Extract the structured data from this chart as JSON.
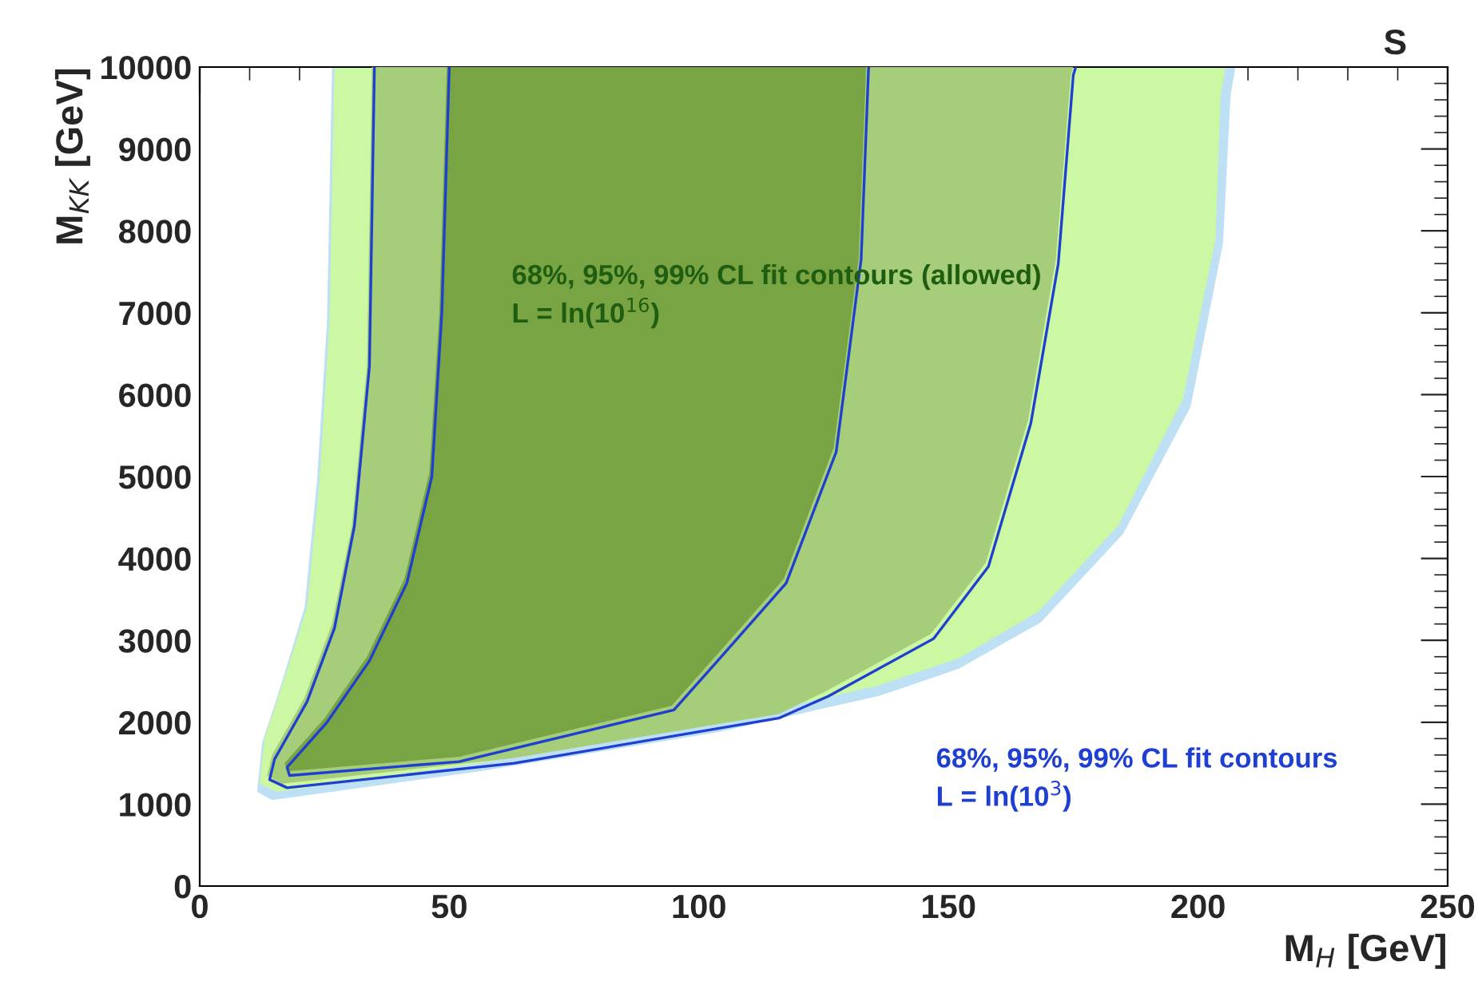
{
  "chart_data": {
    "type": "area",
    "title": "S",
    "xlabel": "M$_{H}$ [GeV]",
    "ylabel": "M$_{KK}$ [GeV]",
    "xlim": [
      0,
      250
    ],
    "ylim": [
      0,
      10000
    ],
    "xticks": [
      0,
      50,
      100,
      150,
      200,
      250
    ],
    "yticks": [
      0,
      1000,
      2000,
      3000,
      4000,
      5000,
      6000,
      7000,
      8000,
      9000,
      10000
    ],
    "grid": false,
    "legend": false,
    "annotations": [
      "68%, 95%, 99% CL fit contours (allowed)\nL = ln(10$^{16}$)",
      "68%, 95%, 99% CL fit contours\nL = ln(10$^{3}$)"
    ],
    "series": [
      {
        "color": "#bde0f5",
        "x": [
          26.5,
          25.5,
          23.5,
          21,
          16,
          12.5,
          11.5,
          14.5,
          56,
          104,
          136,
          152,
          168.5,
          185,
          198.5,
          205,
          206.5,
          207.5
        ],
        "values": [
          10000,
          6900,
          4950,
          3400,
          2400,
          1750,
          1150,
          1050,
          1400,
          1880,
          2320,
          2650,
          3220,
          4300,
          5850,
          7850,
          9650,
          10000
        ]
      },
      {
        "color": "#ccf7a3",
        "x": [
          27,
          26,
          24,
          21.5,
          16.5,
          13,
          12,
          15.5,
          56,
          104,
          136,
          152,
          168,
          184,
          197,
          203.5,
          204.5,
          205.5
        ],
        "values": [
          10000,
          6900,
          4950,
          3400,
          2450,
          1800,
          1250,
          1150,
          1500,
          2000,
          2450,
          2780,
          3350,
          4400,
          5950,
          7900,
          9650,
          10000
        ]
      },
      {
        "color": "#a6cd79",
        "x": [
          34.5,
          33.5,
          30.5,
          26.5,
          21,
          14.5,
          13.5,
          16.5,
          62.5,
          116,
          125.5,
          146.5,
          157.5,
          166,
          171.5,
          174.5,
          175
        ],
        "values": [
          10000,
          6350,
          4400,
          3200,
          2300,
          1600,
          1350,
          1250,
          1560,
          2100,
          2380,
          3080,
          3950,
          5700,
          7650,
          9900,
          10000
        ]
      },
      {
        "color": "#78a443",
        "x": [
          49.5,
          48,
          46,
          41,
          33.5,
          25,
          17,
          17.5,
          52,
          94.5,
          104,
          117,
          127,
          132,
          133.5
        ],
        "values": [
          10000,
          7000,
          5050,
          3750,
          2800,
          2050,
          1500,
          1400,
          1580,
          2200,
          2850,
          3750,
          5350,
          7650,
          10000
        ]
      },
      {
        "type": "line",
        "color": "#1f3fd0",
        "x": [
          35,
          34,
          31,
          27,
          21.5,
          15,
          14,
          17.5,
          63,
          116,
          126,
          147,
          158,
          166.5,
          172,
          175,
          175.5
        ],
        "values": [
          10000,
          6350,
          4400,
          3150,
          2250,
          1550,
          1300,
          1200,
          1500,
          2050,
          2320,
          3020,
          3900,
          5650,
          7600,
          9900,
          10000
        ]
      },
      {
        "type": "line",
        "color": "#1f3fd0",
        "x": [
          50,
          48.5,
          46.5,
          41.5,
          34,
          25.5,
          17.5,
          18,
          52,
          95,
          104.5,
          117.5,
          127.5,
          132.5,
          134
        ],
        "values": [
          10000,
          7000,
          5000,
          3700,
          2750,
          2000,
          1450,
          1350,
          1520,
          2150,
          2800,
          3700,
          5300,
          7650,
          10000
        ]
      }
    ]
  }
}
